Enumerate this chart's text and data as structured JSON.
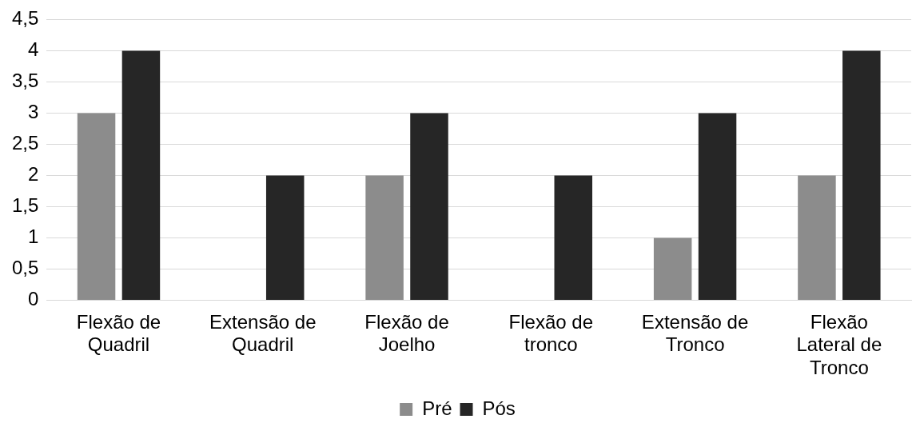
{
  "chart_data": {
    "type": "bar",
    "categories": [
      "Flexão de Quadril",
      "Extensão de Quadril",
      "Flexão de Joelho",
      "Flexão de tronco",
      "Extensão de Tronco",
      "Flexão Lateral de Tronco"
    ],
    "series": [
      {
        "name": "Pré",
        "color": "#8c8c8c",
        "values": [
          3,
          0,
          2,
          0,
          1,
          2
        ]
      },
      {
        "name": "Pós",
        "color": "#262626",
        "values": [
          4,
          2,
          3,
          2,
          3,
          4
        ]
      }
    ],
    "ylim": [
      0,
      4.5
    ],
    "yticks": [
      {
        "value": 0,
        "label": "0"
      },
      {
        "value": 0.5,
        "label": "0,5"
      },
      {
        "value": 1,
        "label": "1"
      },
      {
        "value": 1.5,
        "label": "1,5"
      },
      {
        "value": 2,
        "label": "2"
      },
      {
        "value": 2.5,
        "label": "2,5"
      },
      {
        "value": 3,
        "label": "3"
      },
      {
        "value": 3.5,
        "label": "3,5"
      },
      {
        "value": 4,
        "label": "4"
      },
      {
        "value": 4.5,
        "label": "4,5"
      }
    ],
    "grid": "y",
    "legend": "bottom"
  }
}
